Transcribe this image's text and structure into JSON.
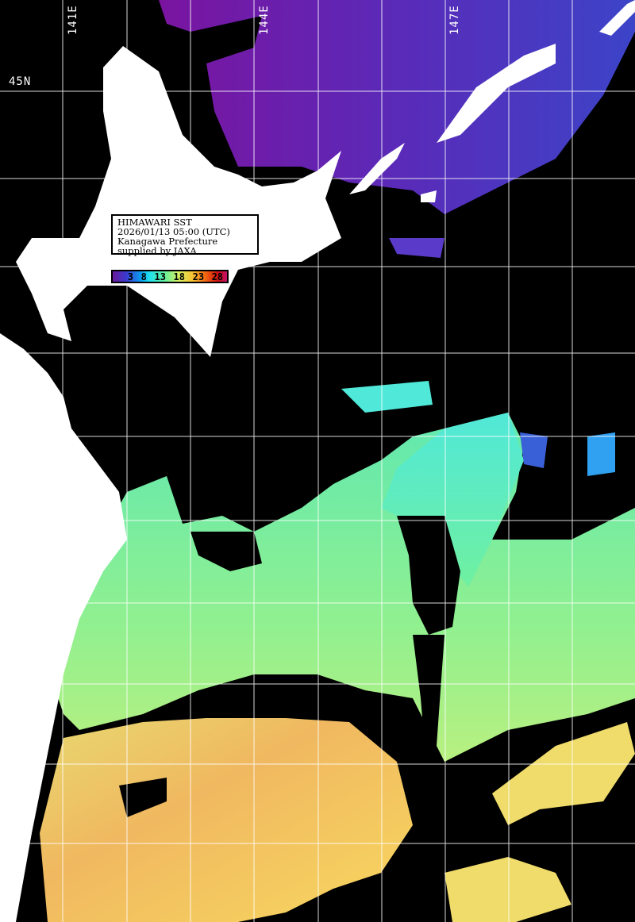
{
  "title": "HIMAWARI SST",
  "info": {
    "line1": "HIMAWARI SST",
    "line2": "2026/01/13 05:00 (UTC)",
    "line3": "Kanagawa Prefecture",
    "line4": "supplied by JAXA"
  },
  "colorbar": {
    "ticks": [
      "3",
      "8",
      "13",
      "18",
      "23",
      "28"
    ],
    "colors": [
      "#6a1a9a",
      "#3a3ad0",
      "#0aa0f0",
      "#60f0a0",
      "#d8f060",
      "#f8c030",
      "#f06010",
      "#d01010",
      "#c0106a"
    ]
  },
  "axes": {
    "longitude_labels": [
      "141E",
      "144E",
      "147E"
    ],
    "latitude_labels": [
      "45N"
    ]
  },
  "colors": {
    "land": "#ffffff",
    "no_data": "#000000",
    "grid": "#ffffff"
  }
}
